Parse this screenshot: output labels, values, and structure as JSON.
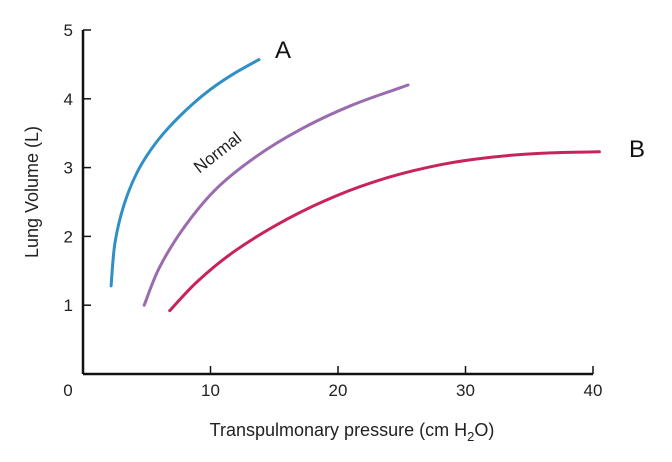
{
  "chart_data": {
    "type": "line",
    "xlabel": "Transpulmonary pressure (cm H",
    "xlabel_sub": "2",
    "xlabel_tail": "O)",
    "ylabel": "Lung Volume (L)",
    "xlim": [
      0,
      40
    ],
    "ylim": [
      0,
      5
    ],
    "x_ticks": [
      10,
      20,
      30,
      40
    ],
    "x_tick_labels": [
      "10",
      "20",
      "30",
      "40"
    ],
    "y_ticks": [
      1,
      2,
      3,
      4,
      5
    ],
    "y_tick_labels": [
      "1",
      "2",
      "3",
      "4",
      "5"
    ],
    "origin_label": "0",
    "grid": false,
    "legend": "none",
    "series": [
      {
        "name": "A",
        "color": "#2f8fc7",
        "x": [
          2.2,
          2.5,
          3.2,
          4.3,
          5.8,
          7.6,
          9.6,
          11.7,
          13.8
        ],
        "y": [
          1.28,
          1.9,
          2.45,
          2.95,
          3.38,
          3.75,
          4.08,
          4.35,
          4.57
        ]
      },
      {
        "name": "Normal",
        "color": "#9b6bb0",
        "x": [
          4.8,
          6,
          8,
          10.5,
          13.5,
          17,
          21,
          25.5
        ],
        "y": [
          1.0,
          1.55,
          2.15,
          2.7,
          3.15,
          3.55,
          3.9,
          4.2
        ]
      },
      {
        "name": "B",
        "color": "#c8245a",
        "x": [
          6.8,
          9,
          12,
          16,
          20,
          24,
          28,
          32,
          36,
          40.5
        ],
        "y": [
          0.92,
          1.35,
          1.8,
          2.25,
          2.6,
          2.86,
          3.04,
          3.15,
          3.21,
          3.23
        ]
      }
    ],
    "annotations": {
      "a_label": "A",
      "normal_label": "Normal",
      "b_label": "B"
    }
  }
}
